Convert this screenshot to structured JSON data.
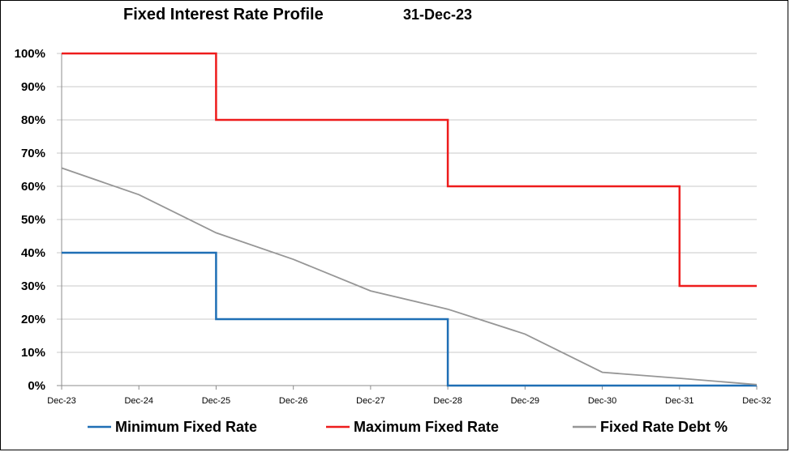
{
  "header": {
    "title": "Fixed Interest Rate Profile",
    "date": "31-Dec-23"
  },
  "chart_data": {
    "type": "line",
    "title": "Fixed Interest Rate Profile",
    "xlabel": "",
    "ylabel": "",
    "x": [
      "Dec-23",
      "Dec-24",
      "Dec-25",
      "Dec-26",
      "Dec-27",
      "Dec-28",
      "Dec-29",
      "Dec-30",
      "Dec-31",
      "Dec-32"
    ],
    "y_ticks": [
      "0%",
      "10%",
      "20%",
      "30%",
      "40%",
      "50%",
      "60%",
      "70%",
      "80%",
      "90%",
      "100%"
    ],
    "ylim": [
      0,
      100
    ],
    "grid": "horizontal",
    "legend_position": "bottom",
    "series": [
      {
        "name": "Minimum Fixed Rate",
        "color": "#1f6fb5",
        "step": true,
        "points": [
          [
            0,
            40
          ],
          [
            2,
            40
          ],
          [
            2,
            20
          ],
          [
            5,
            20
          ],
          [
            5,
            0
          ],
          [
            9,
            0
          ]
        ]
      },
      {
        "name": "Maximum Fixed Rate",
        "color": "#ee1c1c",
        "step": true,
        "points": [
          [
            0,
            100
          ],
          [
            2,
            100
          ],
          [
            2,
            80
          ],
          [
            5,
            80
          ],
          [
            5,
            60
          ],
          [
            8,
            60
          ],
          [
            8,
            30
          ],
          [
            9,
            30
          ]
        ]
      },
      {
        "name": "Fixed Rate Debt %",
        "color": "#969696",
        "step": false,
        "points": [
          [
            0,
            65.5
          ],
          [
            1,
            57.5
          ],
          [
            2,
            46
          ],
          [
            3,
            38
          ],
          [
            4,
            28.5
          ],
          [
            5,
            23
          ],
          [
            6,
            15.5
          ],
          [
            7,
            4
          ],
          [
            8,
            2.2
          ],
          [
            9,
            0.3
          ]
        ]
      }
    ]
  }
}
